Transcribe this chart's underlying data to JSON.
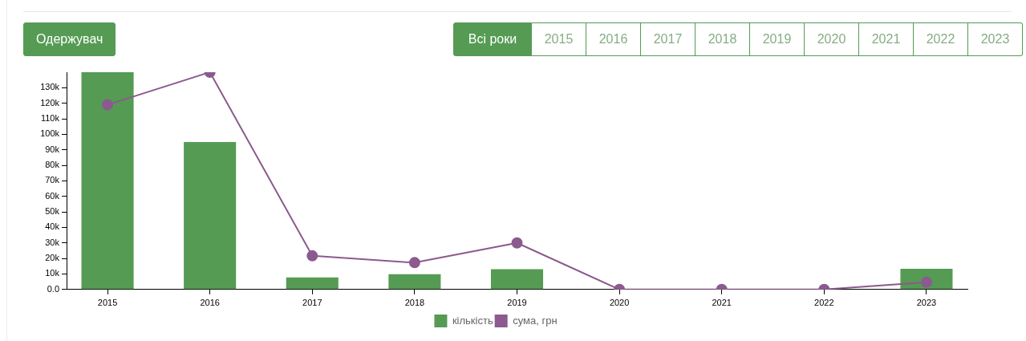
{
  "chart_data": {
    "type": "bar",
    "title": "Одержувач",
    "annotations": [
      "Всі роки",
      "2015",
      "2016",
      "2017",
      "2018",
      "2019",
      "2020",
      "2021",
      "2022",
      "2023"
    ],
    "categories": [
      "2015",
      "2016",
      "2017",
      "2018",
      "2019",
      "2020",
      "2021",
      "2022",
      "2023"
    ],
    "series": [
      {
        "name": "кількість",
        "color": "#559b54",
        "values": [
          140000,
          95000,
          7800,
          9800,
          13100,
          0,
          0,
          0,
          13400
        ]
      },
      {
        "name": "сума, грн",
        "type": "line",
        "color": "#8c5a8e",
        "values": [
          119000,
          140000,
          21700,
          17300,
          30000,
          0,
          0,
          0,
          4700
        ]
      }
    ],
    "ylim": [
      0,
      140000
    ],
    "yticks": [
      {
        "value": 0,
        "label": "0.0"
      },
      {
        "value": 10000,
        "label": "10k"
      },
      {
        "value": 20000,
        "label": "20k"
      },
      {
        "value": 30000,
        "label": "30k"
      },
      {
        "value": 40000,
        "label": "40k"
      },
      {
        "value": 50000,
        "label": "50k"
      },
      {
        "value": 60000,
        "label": "60k"
      },
      {
        "value": 70000,
        "label": "70k"
      },
      {
        "value": 80000,
        "label": "80k"
      },
      {
        "value": 90000,
        "label": "90k"
      },
      {
        "value": 100000,
        "label": "100k"
      },
      {
        "value": 110000,
        "label": "110k"
      },
      {
        "value": 120000,
        "label": "120k"
      },
      {
        "value": 130000,
        "label": "130k"
      }
    ],
    "legend": "bottom",
    "marker": "circle"
  }
}
